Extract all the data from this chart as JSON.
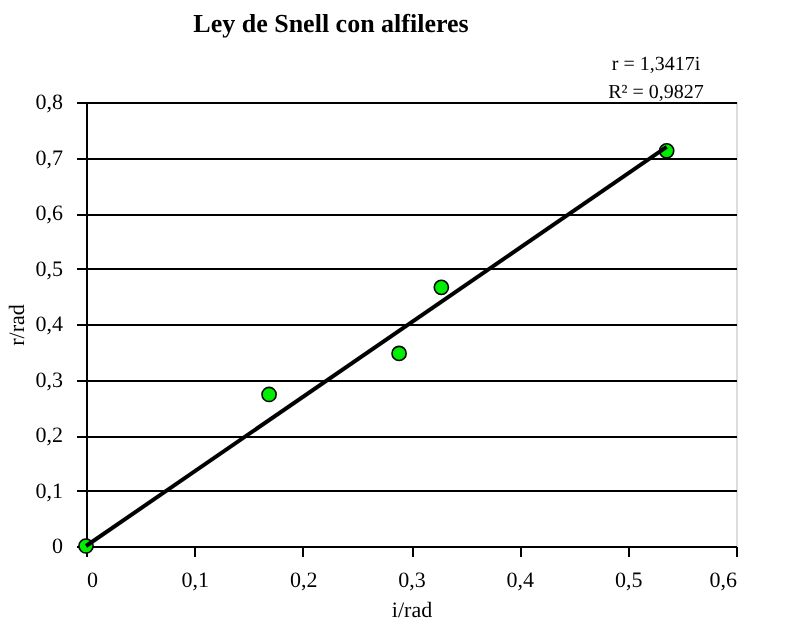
{
  "chart_data": {
    "type": "scatter",
    "title": "Ley de Snell con  alfileres",
    "xlabel": "i/rad",
    "ylabel": "r/rad",
    "annotations": [
      "r = 1,3417i",
      "R² = 0,9827"
    ],
    "series": [
      {
        "color": "#00ee00",
        "marker": "circle",
        "x": [
          0,
          0.169,
          0.289,
          0.328,
          0.536
        ],
        "values": [
          0,
          0.273,
          0.347,
          0.466,
          0.712
        ]
      },
      {
        "type": "line",
        "color": "#000000",
        "line_style": "solid",
        "x": [
          0,
          0.536
        ],
        "values": [
          0,
          0.719
        ]
      }
    ],
    "xlim": [
      0,
      0.6
    ],
    "ylim": [
      0,
      0.8
    ],
    "xticks": [
      0,
      {
        "value": 0.1,
        "label": "0,1"
      },
      {
        "value": 0.2,
        "label": "0,2"
      },
      {
        "value": 0.3,
        "label": "0,3"
      },
      {
        "value": 0.4,
        "label": "0,4"
      },
      {
        "value": 0.5,
        "label": "0,5"
      },
      {
        "value": 0.6,
        "label": "0,6"
      }
    ],
    "yticks": [
      0,
      {
        "value": 0.1,
        "label": "0,1"
      },
      {
        "value": 0.2,
        "label": "0,2"
      },
      {
        "value": 0.3,
        "label": "0,3"
      },
      {
        "value": 0.4,
        "label": "0,4"
      },
      {
        "value": 0.5,
        "label": "0,5"
      },
      {
        "value": 0.6,
        "label": "0,6"
      },
      {
        "value": 0.7,
        "label": "0,7"
      },
      {
        "value": 0.8,
        "label": "0,8"
      }
    ],
    "grid": "y",
    "legend": false
  }
}
